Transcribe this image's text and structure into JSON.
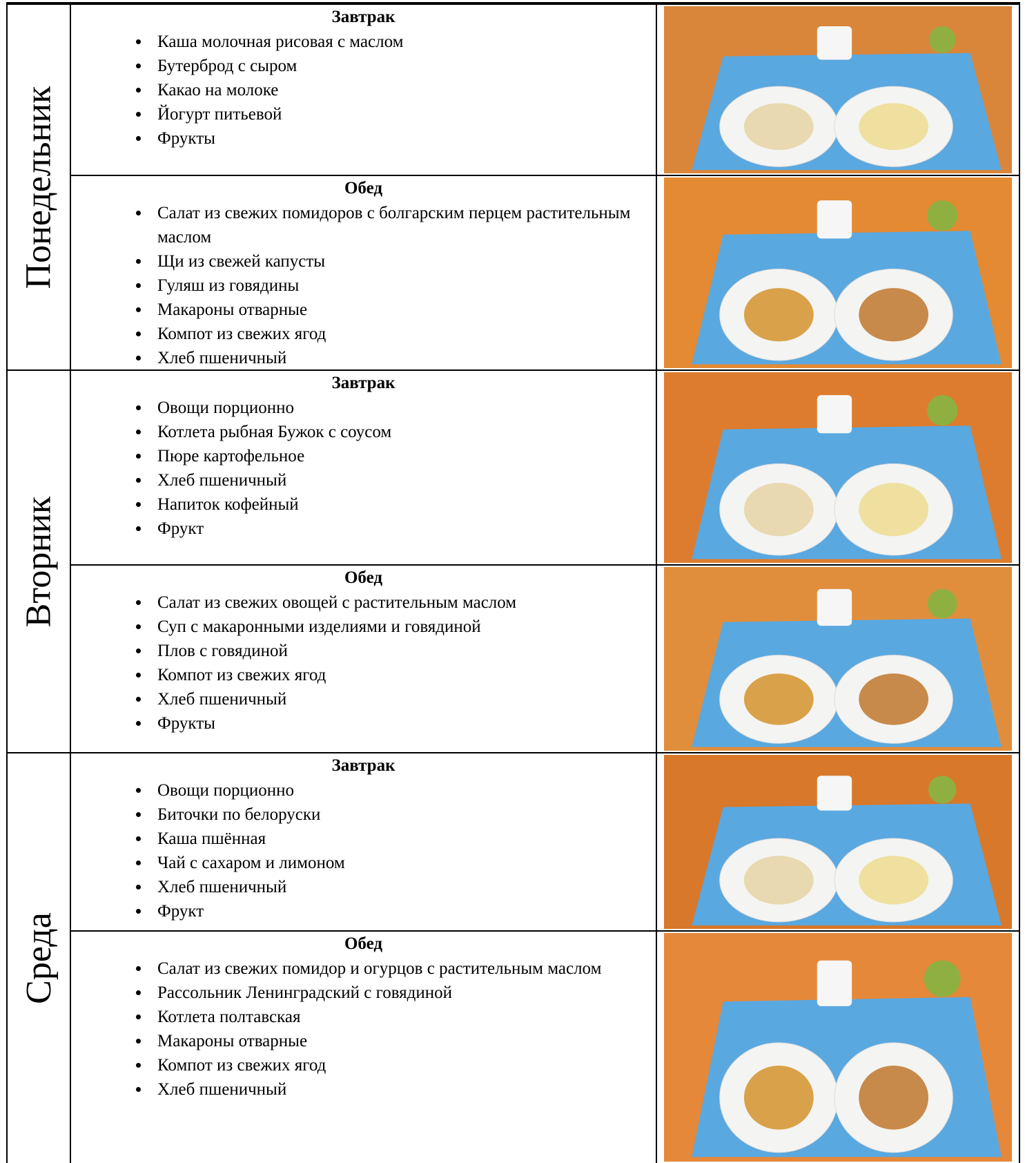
{
  "days": [
    {
      "name": "Понедельник",
      "meals": [
        {
          "title": "Завтрак",
          "items": [
            "Каша молочная рисовая с маслом",
            "Бутерброд с сыром",
            "Какао на молоке",
            "Йогурт питьевой",
            "Фрукты"
          ]
        },
        {
          "title": "Обед",
          "items": [
            "Салат из свежих помидоров с болгарским перцем растительным маслом",
            "Щи из свежей капусты",
            "Гуляш из говядины",
            "Макароны отварные",
            "Компот из свежих ягод",
            "Хлеб пшеничный"
          ]
        }
      ]
    },
    {
      "name": "Вторник",
      "meals": [
        {
          "title": "Завтрак",
          "items": [
            "Овощи порционно",
            "Котлета рыбная  Бужок  с соусом",
            "Пюре картофельное",
            "Хлеб пшеничный",
            "Напиток кофейный",
            "Фрукт"
          ]
        },
        {
          "title": "Обед",
          "items": [
            "Салат из свежих овощей с растительным маслом",
            "Суп с макаронными изделиями и говядиной",
            "Плов с говядиной",
            "Компот  из свежих ягод",
            "Хлеб пшеничный",
            "Фрукты"
          ]
        }
      ]
    },
    {
      "name": "Среда",
      "meals": [
        {
          "title": "Завтрак",
          "items": [
            "Овощи порционно",
            "Биточки по белоруски",
            "Каша пшённая",
            "Чай с сахаром и лимоном",
            "Хлеб пшеничный",
            "Фрукт"
          ]
        },
        {
          "title": "Обед",
          "items": [
            "Салат из свежих помидор и огурцов с растительным маслом",
            "Рассольник  Ленинградский с говядиной",
            "Котлета полтавская",
            "Макароны отварные",
            "Компот  из свежих ягод",
            "Хлеб пшеничный"
          ]
        }
      ]
    }
  ]
}
